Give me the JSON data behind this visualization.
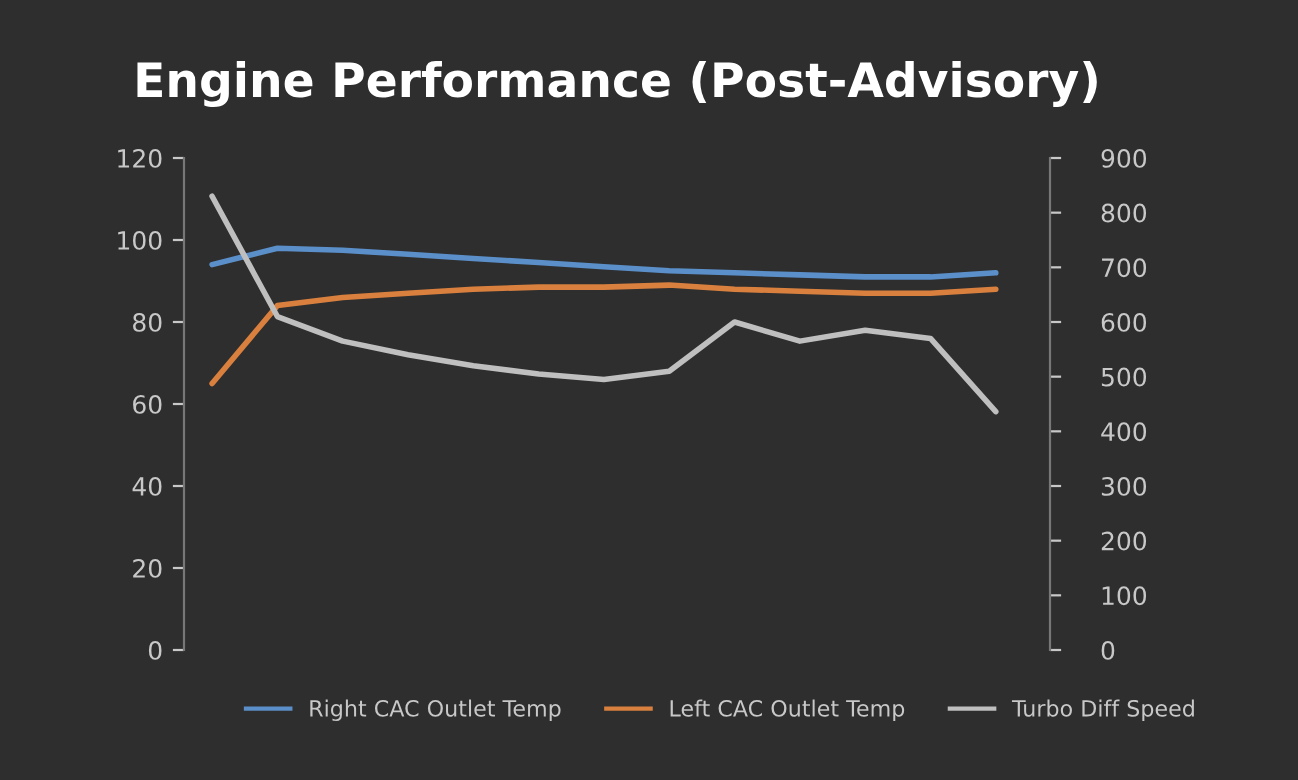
{
  "chart_data": {
    "type": "line",
    "title": "Engine Performance (Post-Advisory)",
    "categories": [
      null,
      null,
      null,
      null,
      null,
      null,
      null,
      null,
      null,
      null,
      null,
      null,
      null
    ],
    "series": [
      {
        "name": "Right CAC Outlet Temp",
        "color": "#5b8fc9",
        "values": [
          94,
          98,
          97.5,
          96.5,
          95.5,
          94.5,
          93.5,
          92.5,
          92,
          91.5,
          91,
          91,
          92
        ]
      },
      {
        "name": "Left CAC Outlet Temp",
        "color": "#d9803f",
        "values": [
          65,
          84,
          86,
          87,
          88,
          88.5,
          88.5,
          89,
          88,
          87.5,
          87,
          87,
          88
        ]
      },
      {
        "name": "Turbo Diff Speed",
        "color": "#bfbfbf",
        "axis": "y2",
        "values": [
          830,
          610,
          565,
          540,
          520,
          505,
          495,
          510,
          600,
          565,
          585,
          570,
          436
        ]
      }
    ],
    "ylim": [
      0,
      120
    ],
    "yticks": [
      0,
      20,
      40,
      60,
      80,
      100,
      120
    ],
    "y2lim": [
      0,
      900
    ],
    "y2ticks": [
      0,
      100,
      200,
      300,
      400,
      500,
      600,
      700,
      800,
      900
    ],
    "legend": "bottom",
    "grid": false
  }
}
